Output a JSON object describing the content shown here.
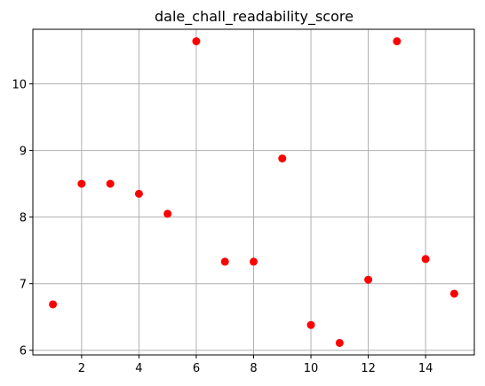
{
  "chart_data": {
    "type": "scatter",
    "title": "dale_chall_readability_score",
    "xlabel": "",
    "ylabel": "",
    "x": [
      1,
      2,
      3,
      4,
      5,
      6,
      7,
      8,
      9,
      10,
      11,
      12,
      13,
      14,
      15
    ],
    "y": [
      6.69,
      8.5,
      8.5,
      8.35,
      8.05,
      10.64,
      7.33,
      7.33,
      8.88,
      6.38,
      6.11,
      7.06,
      10.64,
      7.37,
      6.85
    ],
    "xlim": [
      0.3,
      15.7
    ],
    "ylim": [
      5.93,
      10.82
    ],
    "xticks": [
      2,
      4,
      6,
      8,
      10,
      12,
      14
    ],
    "yticks": [
      6,
      7,
      8,
      9,
      10
    ],
    "marker_color": "#ff0000",
    "grid": true,
    "legend": "none"
  }
}
